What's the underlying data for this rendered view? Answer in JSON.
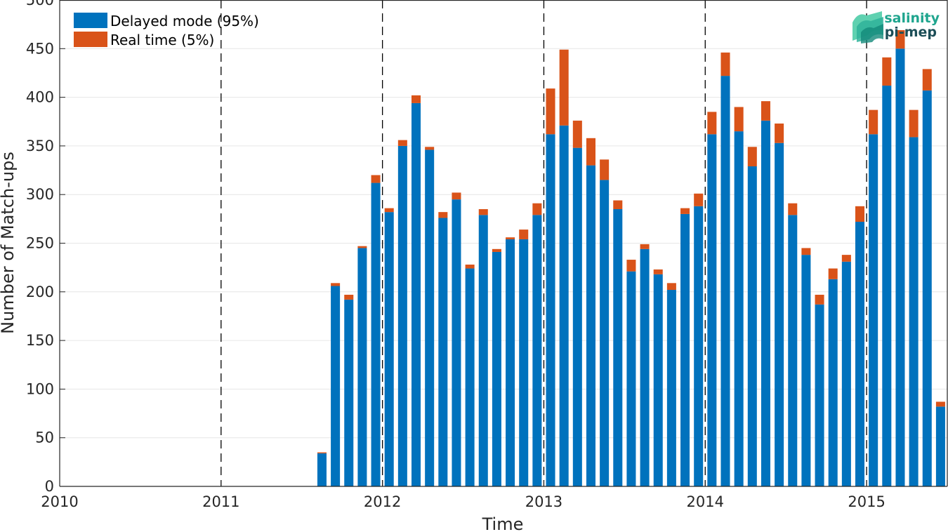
{
  "colors": {
    "delayed": "#0072BD",
    "realtime": "#D95319",
    "axis": "#262626",
    "grid": "#e6e6e6",
    "logo_teal": "#1fa58e",
    "logo_dark": "#1c4e57"
  },
  "logo": {
    "line1": "salinity",
    "line2": "pi-mep"
  },
  "chart_data": {
    "type": "bar",
    "stacked": true,
    "xlabel": "Time",
    "ylabel": "Number of Match-ups",
    "xlim": [
      "2010-01",
      "2015-07"
    ],
    "ylim": [
      0,
      500
    ],
    "yticks": [
      0,
      50,
      100,
      150,
      200,
      250,
      300,
      350,
      400,
      450,
      500
    ],
    "xticks": [
      "2010",
      "2011",
      "2012",
      "2013",
      "2014",
      "2015"
    ],
    "year_dividers": [
      "2011",
      "2012",
      "2013",
      "2014",
      "2015"
    ],
    "grid": true,
    "legend_position": "top-left",
    "months": [
      "2011-08",
      "2011-09",
      "2011-10",
      "2011-11",
      "2011-12",
      "2012-01",
      "2012-02",
      "2012-03",
      "2012-04",
      "2012-05",
      "2012-06",
      "2012-07",
      "2012-08",
      "2012-09",
      "2012-10",
      "2012-11",
      "2012-12",
      "2013-01",
      "2013-02",
      "2013-03",
      "2013-04",
      "2013-05",
      "2013-06",
      "2013-07",
      "2013-08",
      "2013-09",
      "2013-10",
      "2013-11",
      "2013-12",
      "2014-01",
      "2014-02",
      "2014-03",
      "2014-04",
      "2014-05",
      "2014-06",
      "2014-07",
      "2014-08",
      "2014-09",
      "2014-10",
      "2014-11",
      "2014-12",
      "2015-01",
      "2015-02",
      "2015-03",
      "2015-04",
      "2015-05",
      "2015-06"
    ],
    "series": [
      {
        "name": "Delayed mode (95%)",
        "values": [
          34,
          206,
          192,
          245,
          312,
          282,
          350,
          394,
          346,
          276,
          295,
          224,
          279,
          241,
          254,
          254,
          279,
          362,
          371,
          348,
          330,
          315,
          285,
          221,
          244,
          218,
          202,
          280,
          288,
          362,
          422,
          365,
          329,
          376,
          353,
          279,
          238,
          187,
          213,
          231,
          272,
          362,
          412,
          450,
          359,
          407,
          82
        ]
      },
      {
        "name": "Real time (5%)",
        "values": [
          1,
          3,
          5,
          2,
          8,
          4,
          6,
          8,
          3,
          6,
          7,
          4,
          6,
          3,
          2,
          10,
          12,
          47,
          78,
          28,
          28,
          21,
          9,
          12,
          5,
          5,
          7,
          6,
          13,
          23,
          24,
          25,
          20,
          20,
          20,
          12,
          7,
          10,
          11,
          7,
          16,
          25,
          29,
          19,
          28,
          22,
          5
        ]
      }
    ]
  }
}
